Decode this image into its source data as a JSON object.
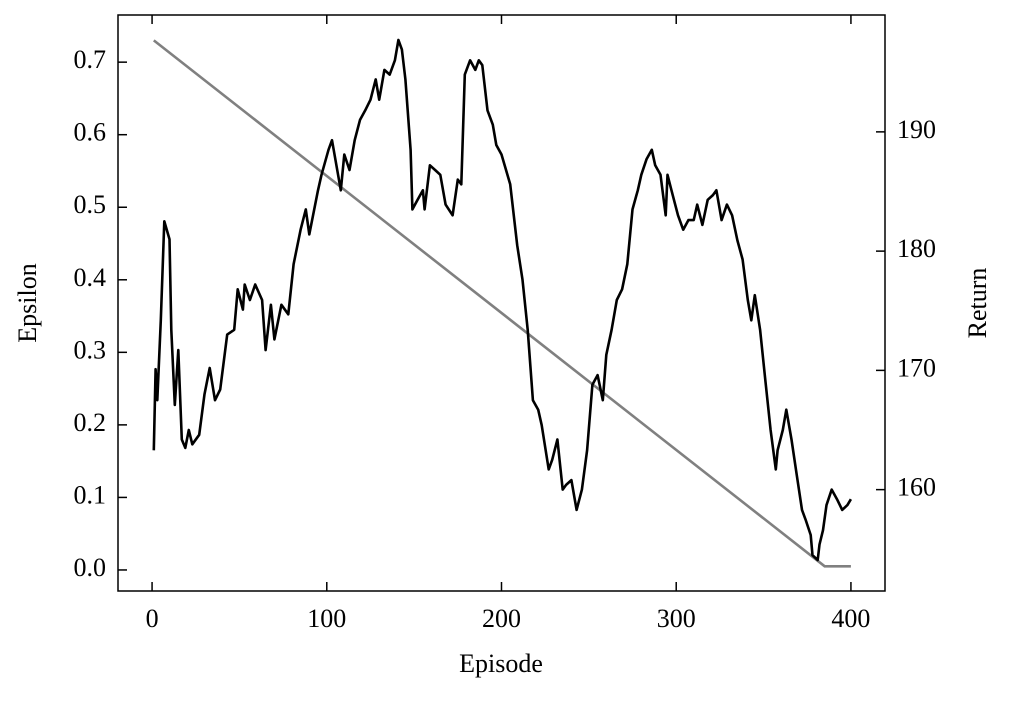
{
  "chart_data": {
    "type": "line",
    "xlabel": "Episode",
    "ylabel": "Epsilon",
    "y2label": "Return",
    "xlim": [
      -19.5,
      419.5
    ],
    "xticks": [
      0,
      100,
      200,
      300,
      400
    ],
    "ylim": [
      -0.029,
      0.765
    ],
    "yticks": [
      {
        "value": 0,
        "label": "0.0"
      },
      0.1,
      0.2,
      0.3,
      0.4,
      0.5,
      0.6,
      0.7
    ],
    "y2lim": [
      151.5,
      199.8
    ],
    "y2ticks": [
      160,
      170,
      180,
      190
    ],
    "series": [
      {
        "name": "Epsilon",
        "color": "#808080",
        "x": [
          1,
          385,
          400
        ],
        "values": [
          0.73,
          0.005,
          0.005
        ]
      },
      {
        "name": "Return",
        "color": "#000000",
        "axis": "y2",
        "x": [
          1,
          2,
          3,
          5,
          7,
          10,
          11,
          13,
          15,
          17,
          19,
          21,
          23,
          27,
          30,
          33,
          36,
          39,
          43,
          47,
          49,
          52,
          53,
          56,
          59,
          63,
          65,
          68,
          70,
          74,
          78,
          81,
          85,
          88,
          90,
          95,
          97,
          101,
          103,
          108,
          110,
          113,
          116,
          119,
          122,
          125,
          128,
          130,
          133,
          136,
          139,
          141,
          143,
          145,
          148,
          149,
          152,
          155,
          156,
          159,
          162,
          165,
          168,
          172,
          175,
          177,
          179,
          182,
          185,
          187,
          189,
          192,
          195,
          197,
          200,
          205,
          209,
          212,
          215,
          218,
          221,
          223,
          227,
          229,
          232,
          235,
          237,
          240,
          243,
          246,
          249,
          252,
          255,
          258,
          260,
          263,
          266,
          269,
          272,
          275,
          278,
          280,
          283,
          286,
          288,
          291,
          294,
          295,
          298,
          301,
          304,
          307,
          310,
          312,
          315,
          318,
          321,
          323,
          326,
          329,
          332,
          335,
          338,
          341,
          343,
          345,
          348,
          351,
          354,
          357,
          358,
          361,
          363,
          366,
          369,
          372,
          374,
          377,
          378,
          381,
          382,
          384,
          386,
          389,
          392,
          395,
          398,
          400
        ],
        "values": [
          163.3,
          170.1,
          167.5,
          174.2,
          182.5,
          181.0,
          173.4,
          167.1,
          171.7,
          164.2,
          163.5,
          165.0,
          163.8,
          164.6,
          168.0,
          170.2,
          167.5,
          168.4,
          173.0,
          173.4,
          176.8,
          175.1,
          177.2,
          175.9,
          177.2,
          175.9,
          171.7,
          175.5,
          172.6,
          175.5,
          174.7,
          178.9,
          181.8,
          183.5,
          181.4,
          185.1,
          186.4,
          188.5,
          189.3,
          185.1,
          188.1,
          186.8,
          189.3,
          191.0,
          191.8,
          192.7,
          194.4,
          192.7,
          195.2,
          194.8,
          196.0,
          197.7,
          196.9,
          194.4,
          188.5,
          183.5,
          184.3,
          185.1,
          183.5,
          187.2,
          186.8,
          186.4,
          183.9,
          183.0,
          186.0,
          185.6,
          194.8,
          196.0,
          195.2,
          196.0,
          195.6,
          191.8,
          190.6,
          188.9,
          188.1,
          185.6,
          180.5,
          177.6,
          173.4,
          167.5,
          166.7,
          165.4,
          161.7,
          162.5,
          164.2,
          160.0,
          160.4,
          160.8,
          158.3,
          160.0,
          163.3,
          168.8,
          169.6,
          167.5,
          171.3,
          173.4,
          175.9,
          176.8,
          178.9,
          183.5,
          185.1,
          186.4,
          187.7,
          188.5,
          187.2,
          186.4,
          183.0,
          186.4,
          184.7,
          183.0,
          181.8,
          182.6,
          182.6,
          183.9,
          182.2,
          184.3,
          184.7,
          185.1,
          182.6,
          183.9,
          183.0,
          180.9,
          179.3,
          175.9,
          174.2,
          176.3,
          173.4,
          169.2,
          165.0,
          161.7,
          163.3,
          165.0,
          166.7,
          164.2,
          161.2,
          158.3,
          157.5,
          156.2,
          154.5,
          154.1,
          155.4,
          156.6,
          158.7,
          160.0,
          159.2,
          158.3,
          158.7,
          159.2
        ]
      }
    ]
  }
}
